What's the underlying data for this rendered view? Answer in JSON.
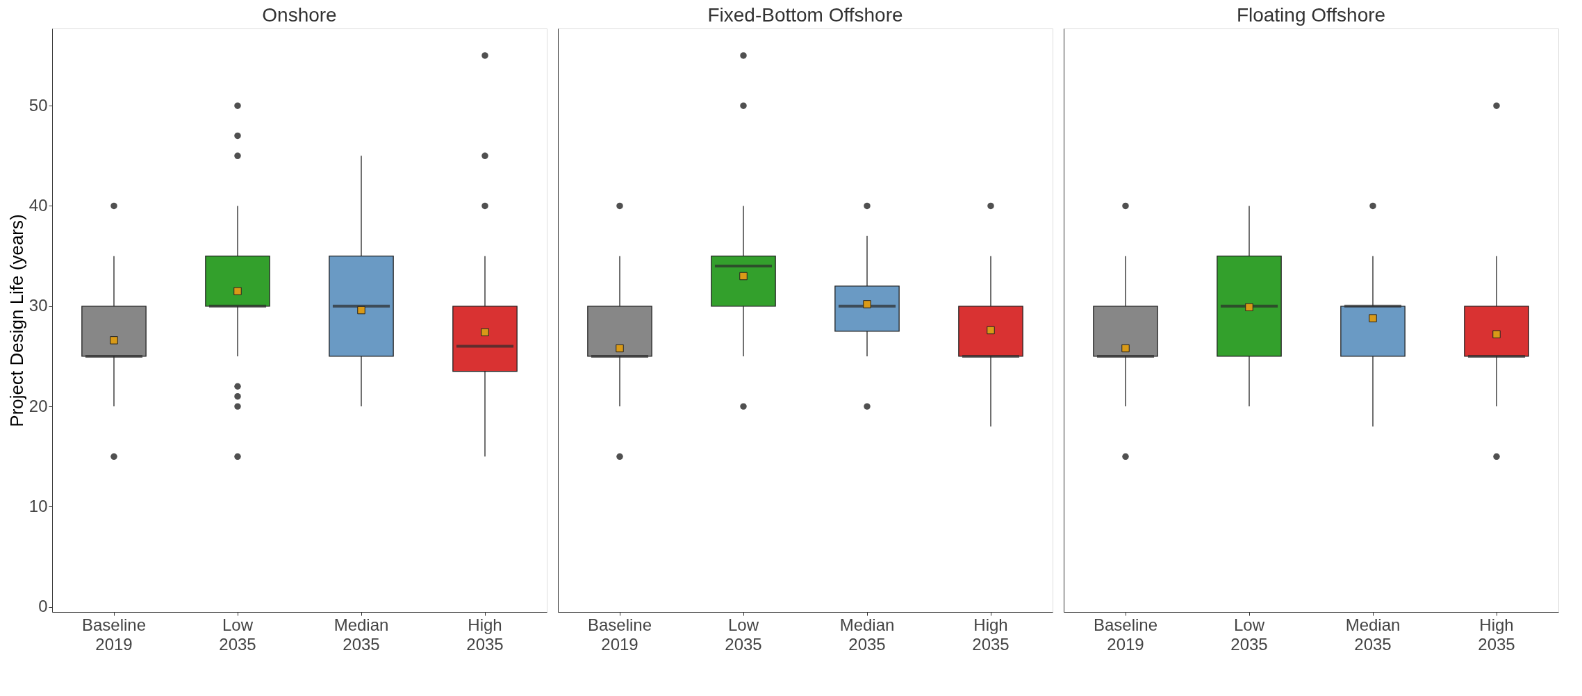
{
  "chart_data": [
    {
      "type": "box",
      "title": "Onshore",
      "ylabel": "Project Design Life (years)",
      "categories": [
        "Baseline 2019",
        "Low 2035",
        "Median 2035",
        "High 2035"
      ],
      "colors": [
        "#878787",
        "#33a02c",
        "#6a9ac4",
        "#d93232"
      ],
      "ylim": [
        -0.5,
        57.7
      ],
      "yticks": [
        0,
        10,
        20,
        30,
        40,
        50
      ],
      "grid": false,
      "legend": false,
      "boxes": [
        {
          "low": 20,
          "q1": 25,
          "median": 25,
          "q3": 30,
          "high": 35,
          "mean": 26.6,
          "outliers": [
            15,
            40
          ]
        },
        {
          "low": 25,
          "q1": 30,
          "median": 30,
          "q3": 35,
          "high": 40,
          "mean": 31.5,
          "outliers": [
            15,
            20,
            21,
            22,
            45,
            47,
            50
          ]
        },
        {
          "low": 20,
          "q1": 25,
          "median": 30,
          "q3": 35,
          "high": 45,
          "mean": 29.6
        },
        {
          "low": 15,
          "q1": 23.5,
          "median": 26,
          "q3": 30,
          "high": 35,
          "mean": 27.4,
          "outliers": [
            40,
            45,
            55
          ]
        }
      ]
    },
    {
      "type": "box",
      "title": "Fixed-Bottom Offshore",
      "categories": [
        "Baseline 2019",
        "Low 2035",
        "Median 2035",
        "High 2035"
      ],
      "colors": [
        "#878787",
        "#33a02c",
        "#6a9ac4",
        "#d93232"
      ],
      "ylim": [
        -0.5,
        57.7
      ],
      "yticks": [
        0,
        10,
        20,
        30,
        40,
        50
      ],
      "tick_labels": "x",
      "grid": false,
      "legend": false,
      "boxes": [
        {
          "low": 20,
          "q1": 25,
          "median": 25,
          "q3": 30,
          "high": 35,
          "mean": 25.8,
          "outliers": [
            15,
            40
          ]
        },
        {
          "low": 25,
          "q1": 30,
          "median": 34,
          "q3": 35,
          "high": 40,
          "mean": 33.0,
          "outliers": [
            20,
            50,
            55
          ]
        },
        {
          "low": 25,
          "q1": 27.5,
          "median": 30,
          "q3": 32,
          "high": 37,
          "mean": 30.2,
          "outliers": [
            20,
            40
          ]
        },
        {
          "low": 18,
          "q1": 25,
          "median": 25,
          "q3": 30,
          "high": 35,
          "mean": 27.6,
          "outliers": [
            40
          ]
        }
      ]
    },
    {
      "type": "box",
      "title": "Floating Offshore",
      "categories": [
        "Baseline 2019",
        "Low 2035",
        "Median 2035",
        "High 2035"
      ],
      "colors": [
        "#878787",
        "#33a02c",
        "#6a9ac4",
        "#d93232"
      ],
      "ylim": [
        -0.5,
        57.7
      ],
      "yticks": [
        0,
        10,
        20,
        30,
        40,
        50
      ],
      "tick_labels": "x",
      "grid": false,
      "legend": false,
      "boxes": [
        {
          "low": 20,
          "q1": 25,
          "median": 25,
          "q3": 30,
          "high": 35,
          "mean": 25.8,
          "outliers": [
            15,
            40
          ]
        },
        {
          "low": 20,
          "q1": 25,
          "median": 30,
          "q3": 35,
          "high": 40,
          "mean": 29.9
        },
        {
          "low": 18,
          "q1": 25,
          "median": 30,
          "q3": 30,
          "high": 35,
          "mean": 28.8,
          "outliers": [
            40
          ]
        },
        {
          "low": 20,
          "q1": 25,
          "median": 25,
          "q3": 30,
          "high": 35,
          "mean": 27.2,
          "outliers": [
            15,
            50
          ]
        }
      ]
    }
  ]
}
